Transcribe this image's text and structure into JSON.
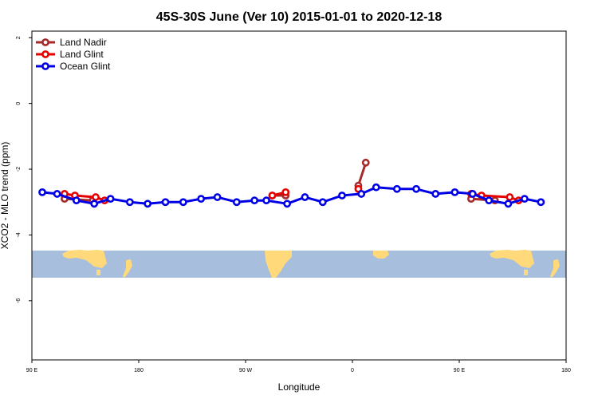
{
  "chart_data": {
    "type": "line",
    "title": "45S-30S June (Ver 10)   2015-01-01 to 2020-12-18",
    "xlabel": "Longitude",
    "ylabel": "XCO2 - MLO trend (ppm)",
    "xlim": [
      90,
      450
    ],
    "ylim": [
      -7.8,
      2.2
    ],
    "x_ticks": [
      {
        "value": 90,
        "label": "90 E"
      },
      {
        "value": 162,
        "label": "180"
      },
      {
        "value": 234,
        "label": "90 W"
      },
      {
        "value": 306,
        "label": "0"
      },
      {
        "value": 378,
        "label": "90 E"
      },
      {
        "value": 450,
        "label": "180"
      }
    ],
    "y_ticks": [
      {
        "value": 2,
        "label": "2"
      },
      {
        "value": 0,
        "label": "0"
      },
      {
        "value": -2,
        "label": "-2"
      },
      {
        "value": -4,
        "label": "-4"
      },
      {
        "value": -6,
        "label": "-6"
      }
    ],
    "legend_position": "top-left",
    "series": [
      {
        "name": "Land Nadir",
        "color": "#a52a2a",
        "segments": [
          {
            "x": [
              112,
              131
            ],
            "y": [
              -2.9,
              -2.95
            ]
          },
          {
            "x": [
              252,
              261
            ],
            "y": [
              -2.8,
              -2.8
            ]
          },
          {
            "x": [
              310,
              315
            ],
            "y": [
              -2.5,
              -1.8
            ]
          },
          {
            "x": [
              386,
              402
            ],
            "y": [
              -2.9,
              -2.95
            ]
          }
        ]
      },
      {
        "name": "Land Glint",
        "color": "#e60000",
        "segments": [
          {
            "x": [
              112,
              119,
              133,
              139
            ],
            "y": [
              -2.75,
              -2.8,
              -2.85,
              -2.95
            ]
          },
          {
            "x": [
              252,
              261
            ],
            "y": [
              -2.8,
              -2.7
            ]
          },
          {
            "x": [
              310
            ],
            "y": [
              -2.6
            ]
          },
          {
            "x": [
              386,
              393,
              412,
              418
            ],
            "y": [
              -2.75,
              -2.8,
              -2.85,
              -2.95
            ]
          }
        ]
      },
      {
        "name": "Ocean Glint",
        "color": "#0000e6",
        "segments": [
          {
            "x": [
              97,
              107,
              120,
              132,
              143,
              156,
              168,
              180,
              192,
              204,
              215,
              228,
              240,
              248,
              262,
              274,
              286,
              299,
              312,
              322,
              336,
              349,
              362,
              375,
              387,
              398,
              411,
              422,
              433
            ],
            "y": [
              -2.7,
              -2.75,
              -2.95,
              -3.05,
              -2.9,
              -3.0,
              -3.05,
              -3.0,
              -3.0,
              -2.9,
              -2.85,
              -3.0,
              -2.95,
              -2.95,
              -3.05,
              -2.85,
              -3.0,
              -2.8,
              -2.75,
              -2.55,
              -2.6,
              -2.6,
              -2.75,
              -2.7,
              -2.75,
              -2.95,
              -3.05,
              -2.9,
              -3.0
            ]
          }
        ]
      }
    ]
  },
  "map_strip": {
    "ocean_color": "#a7bedc",
    "land_color": "#ffd97a"
  }
}
